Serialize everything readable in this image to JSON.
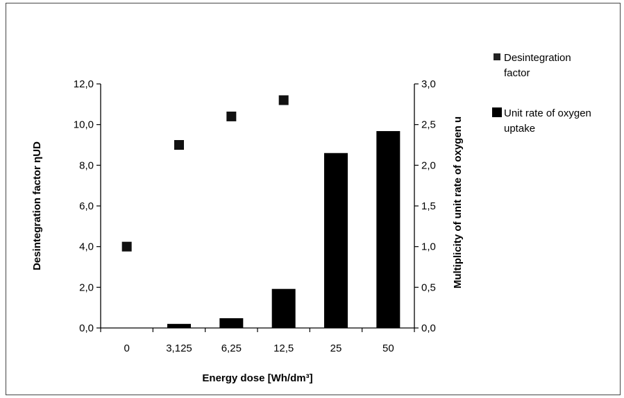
{
  "chart_data": {
    "type": "bar",
    "categories": [
      "0",
      "3,125",
      "6,25",
      "12,5",
      "25",
      "50"
    ],
    "xlabel": "Energy dose [Wh/dm³]",
    "ylabel_left": "Desintegration factor ηUD",
    "ylabel_right": "Multiplicity of unit rate of oxygen u",
    "ylim_left": [
      0,
      12
    ],
    "ylim_right": [
      0,
      3
    ],
    "left_ticks": [
      "0,0",
      "2,0",
      "4,0",
      "6,0",
      "8,0",
      "10,0",
      "12,0"
    ],
    "right_ticks": [
      "0,0",
      "0,5",
      "1,0",
      "1,5",
      "2,0",
      "2,5",
      "3,0"
    ],
    "grid": false,
    "legend_position": "right",
    "series": [
      {
        "name": "Desintegration factor",
        "type": "scatter",
        "axis": "left",
        "marker": "square",
        "color": "#111111",
        "values": [
          4.0,
          9.0,
          10.4,
          11.2,
          null,
          null
        ]
      },
      {
        "name": "Unit rate of oxygen uptake",
        "type": "bar",
        "axis": "right",
        "color": "#000000",
        "values": [
          0.0,
          0.05,
          0.12,
          0.48,
          2.15,
          2.42
        ]
      }
    ]
  }
}
